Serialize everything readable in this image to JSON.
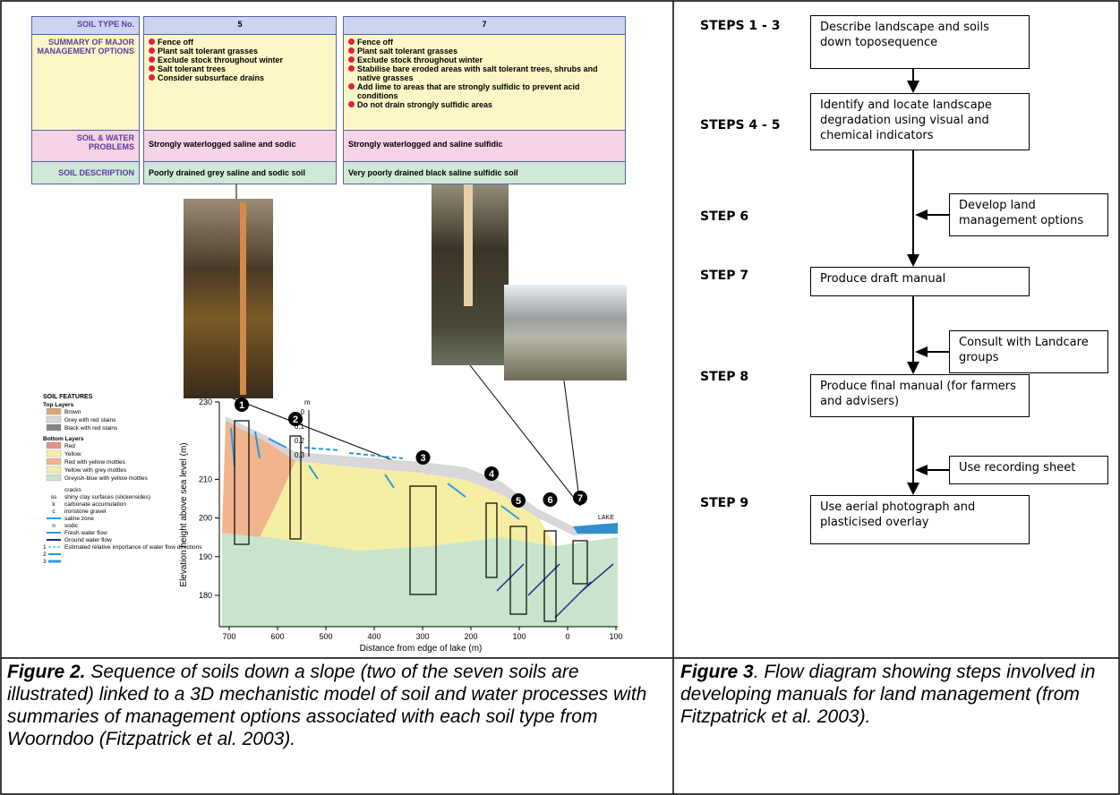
{
  "figure2": {
    "table": {
      "header": {
        "label": "SOIL TYPE No.",
        "soil5": "5",
        "soil7": "7"
      },
      "management": {
        "label": "SUMMARY OF MAJOR MANAGEMENT OPTIONS",
        "soil5": [
          "Fence off",
          "Plant salt tolerant grasses",
          "Exclude stock throughout winter",
          "Salt tolerant trees",
          "Consider subsurface drains"
        ],
        "soil7": [
          "Fence off",
          "Plant salt tolerant grasses",
          "Exclude stock throughout winter",
          "Stabilise bare eroded areas with salt tolerant trees, shrubs and native grasses",
          "Add lime to areas that are strongly sulfidic to prevent acid conditions",
          "Do not drain strongly sulfidic areas"
        ]
      },
      "problems": {
        "label": "SOIL & WATER PROBLEMS",
        "soil5": "Strongly waterlogged saline and sodic",
        "soil7": "Strongly waterlogged and saline sulfidic"
      },
      "description": {
        "label": "SOIL DESCRIPTION",
        "soil5": "Poorly drained grey saline and sodic soil",
        "soil7": "Very poorly drained black saline sulfidic soil"
      }
    },
    "cross_section": {
      "y_label": "Elevation height above sea level (m)",
      "x_label": "Distance from edge of lake (m)",
      "yticks": [
        230,
        210,
        200,
        190,
        180
      ],
      "xticks": [
        700,
        600,
        500,
        400,
        300,
        200,
        100,
        0,
        {
          "value": -100,
          "label": "100"
        }
      ],
      "depth_scale": {
        "unit": "m",
        "ticks": [
          "0",
          "0.1",
          "0.2",
          "0.3"
        ]
      },
      "profiles": [
        "1",
        "2",
        "3",
        "4",
        "5",
        "6",
        "7"
      ],
      "lake": "LAKE"
    },
    "legend": {
      "title": "SOIL FEATURES",
      "top_heading": "Top Layers",
      "top": [
        {
          "label": "Brown",
          "color": "#d9a877"
        },
        {
          "label": "Grey with red stains",
          "color": "#d8d6d8"
        },
        {
          "label": "Black with red stains",
          "color": "#8a7f8a"
        }
      ],
      "bottom_heading": "Bottom Layers",
      "bottom": [
        {
          "label": "Red",
          "color": "#e58f86"
        },
        {
          "label": "Yellow",
          "color": "#fbf0a0"
        },
        {
          "label": "Red with yellow mottles",
          "color": "#f0b48e"
        },
        {
          "label": "Yellow with grey mottles",
          "color": "#eef0a8"
        },
        {
          "label": "Greyish-blue with yellow mottles",
          "color": "#c8e4cc"
        }
      ],
      "symbols": [
        {
          "symbol": "cracks"
        },
        {
          "code": "ss",
          "label": "shiny clay surfaces (slickensides)"
        },
        {
          "code": "k",
          "label": "carbonate accumulation"
        },
        {
          "code": "c",
          "label": "ironstone gravel"
        },
        {
          "label": "saline zone"
        },
        {
          "code": "n",
          "label": "sodic"
        },
        {
          "label": "Fresh water flow"
        },
        {
          "label": "Ground water flow"
        }
      ],
      "importance": {
        "label": "Estimated relative importance of water flow directions",
        "levels": [
          "1",
          "2",
          "3"
        ]
      }
    },
    "caption": {
      "lead": "Figure 2.",
      "text": " Sequence of soils down a slope (two of the seven soils are illustrated) linked to a 3D mechanistic model of soil and water processes with summaries of management options associated with each soil type from Woorndoo (Fitzpatrick et al. 2003)."
    }
  },
  "figure3": {
    "steps": [
      {
        "label": "STEPS 1 - 3",
        "box": "Describe landscape and soils down toposequence"
      },
      {
        "label": "STEPS 4 - 5",
        "box": "Identify and locate landscape degradation using visual and chemical indicators"
      },
      {
        "label": "STEP 6",
        "side": "Develop land management options"
      },
      {
        "label": "STEP 7",
        "box": "Produce draft manual",
        "side": "Consult with Landcare groups"
      },
      {
        "label": "STEP 8",
        "box": "Produce final manual (for farmers and advisers)",
        "side": "Use recording sheet"
      },
      {
        "label": "STEP 9",
        "box": "Use aerial photograph and plasticised overlay"
      }
    ],
    "caption": {
      "lead": "Figure 3",
      "text": ". Flow diagram showing steps involved in developing manuals for land management (from Fitzpatrick et al. 2003)."
    }
  }
}
